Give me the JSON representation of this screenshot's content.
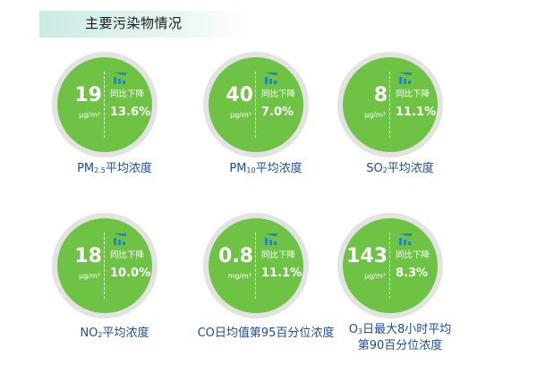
{
  "header": {
    "title": "主要污染物情况"
  },
  "colors": {
    "circle_green": "#6ec345",
    "ring_gray": "#e3e3e3",
    "caption_blue": "#1e4da1",
    "header_band": "#ccebe5"
  },
  "icons": {
    "trend": "bar-chart-icon"
  },
  "trend_label": "同比下降",
  "pollutants": [
    {
      "value": "19",
      "unit": "μg/m³",
      "change_pct": "13.6%",
      "caption_pre": "PM",
      "caption_sub": "2.5",
      "caption_post": "平均浓度"
    },
    {
      "value": "40",
      "unit": "μg/m³",
      "change_pct": "7.0%",
      "caption_pre": "PM",
      "caption_sub": "10",
      "caption_post": "平均浓度"
    },
    {
      "value": "8",
      "unit": "μg/m³",
      "change_pct": "11.1%",
      "caption_pre": "SO",
      "caption_sub": "2",
      "caption_post": "平均浓度"
    },
    {
      "value": "18",
      "unit": "μg/m³",
      "change_pct": "10.0%",
      "caption_pre": "NO",
      "caption_sub": "2",
      "caption_post": "平均浓度"
    },
    {
      "value": "0.8",
      "unit": "mg/m³",
      "change_pct": "11.1%",
      "caption_pre": "CO日均值第95百分位浓度",
      "caption_sub": "",
      "caption_post": ""
    },
    {
      "value": "143",
      "unit": "μg/m³",
      "change_pct": "8.3%",
      "caption_pre": "O",
      "caption_sub": "3",
      "caption_post": "日最大8小时平均",
      "caption_line2": "第90百分位浓度"
    }
  ]
}
